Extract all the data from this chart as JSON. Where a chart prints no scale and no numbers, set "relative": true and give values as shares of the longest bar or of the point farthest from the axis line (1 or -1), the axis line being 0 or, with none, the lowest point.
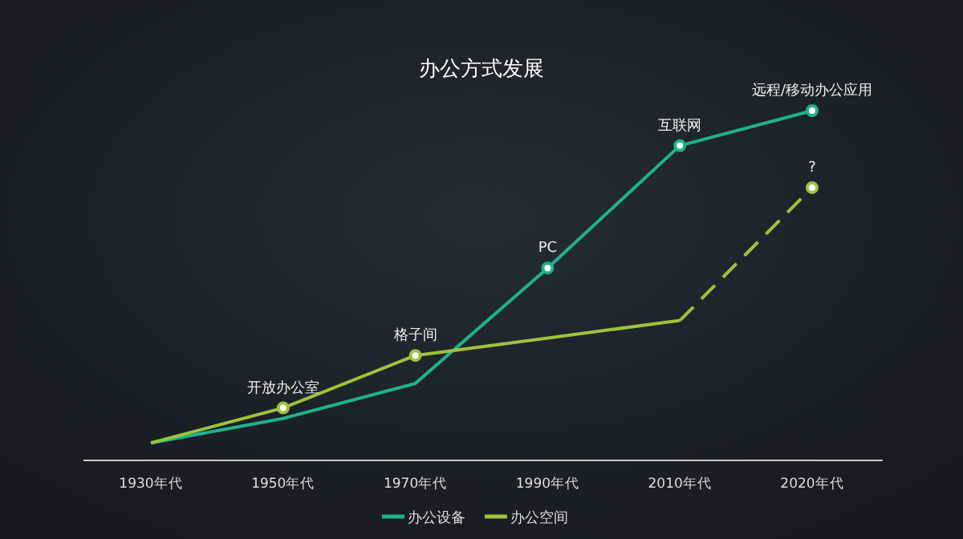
{
  "chart_data": {
    "type": "line",
    "title": "办公方式发展",
    "relative": true,
    "legend": "bottom",
    "categories": [
      "1930年代",
      "1950年代",
      "1970年代",
      "1990年代",
      "2010年代",
      "2020年代"
    ],
    "series": [
      {
        "name": "办公设备",
        "color": "#1fb38a",
        "values": [
          0.05,
          0.12,
          0.22,
          0.55,
          0.9,
          1
        ]
      },
      {
        "name": "办公空间",
        "color": "#9dc33b",
        "values": [
          0.05,
          0.15,
          0.3,
          0.35,
          0.4,
          null
        ]
      },
      {
        "color": "#9dc33b",
        "line_style": "dashed",
        "values": [
          null,
          null,
          null,
          null,
          0.4,
          0.78
        ]
      }
    ],
    "annotations": [
      {
        "text": "开放办公室",
        "x": "1950年代",
        "y": 0.15
      },
      {
        "text": "格子间",
        "x": "1970年代",
        "y": 0.3
      },
      {
        "text": "PC",
        "x": "1990年代",
        "y": 0.55
      },
      {
        "text": "互联网",
        "x": "2010年代",
        "y": 0.9
      },
      {
        "text": "远程/移动办公应用",
        "x": "2020年代",
        "y": 1
      },
      {
        "text": "?",
        "x": "2020年代",
        "y": 0.78
      }
    ]
  }
}
